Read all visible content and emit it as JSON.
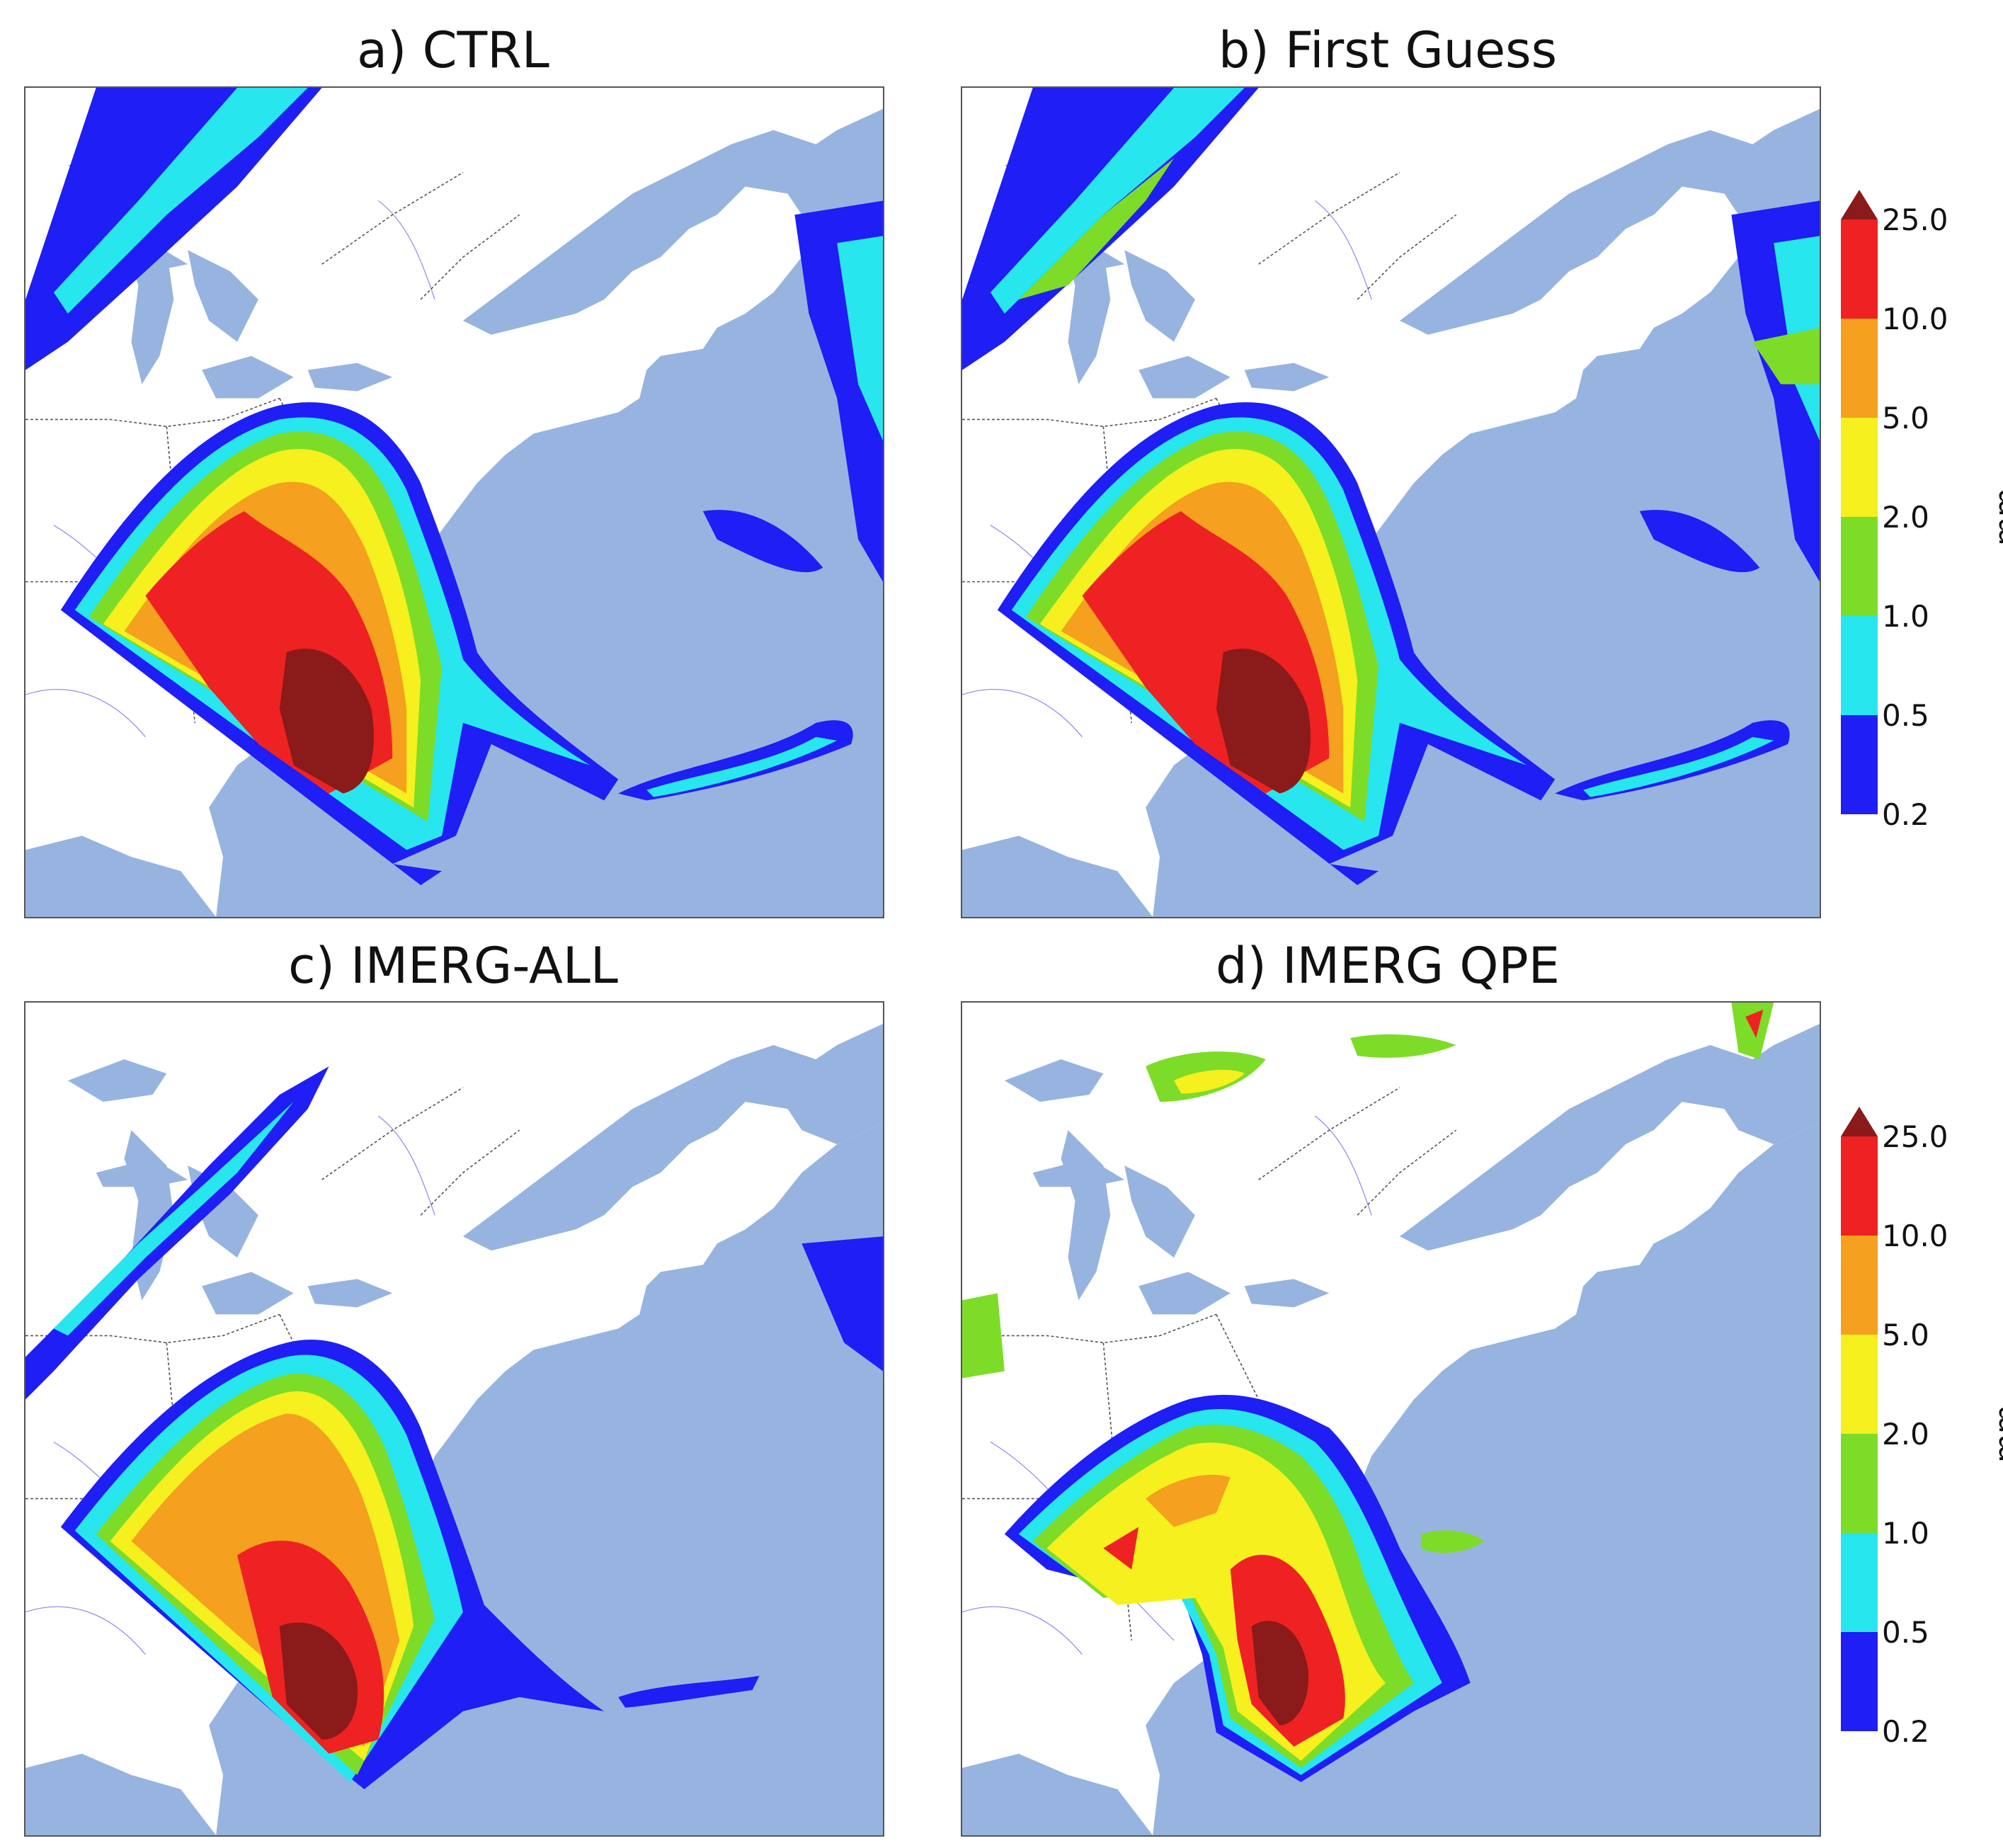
{
  "panels": [
    {
      "id": "a",
      "title": "a) CTRL"
    },
    {
      "id": "b",
      "title": "b) First Guess"
    },
    {
      "id": "c",
      "title": "c) IMERG-ALL"
    },
    {
      "id": "d",
      "title": "d) IMERG QPE"
    }
  ],
  "colorbar": {
    "unit": "mm",
    "levels": [
      "0.2",
      "0.5",
      "1.0",
      "2.0",
      "5.0",
      "10.0",
      "25.0"
    ],
    "colors": [
      "#1e1ef5",
      "#28e6ee",
      "#7ddc28",
      "#f5f01e",
      "#f5a01e",
      "#ee2222",
      "#8b1a1a"
    ]
  },
  "map_colors": {
    "land": "#ffffff",
    "water": "#97b4e0",
    "borders": "#555555",
    "rivers": "#3a3ad8"
  }
}
